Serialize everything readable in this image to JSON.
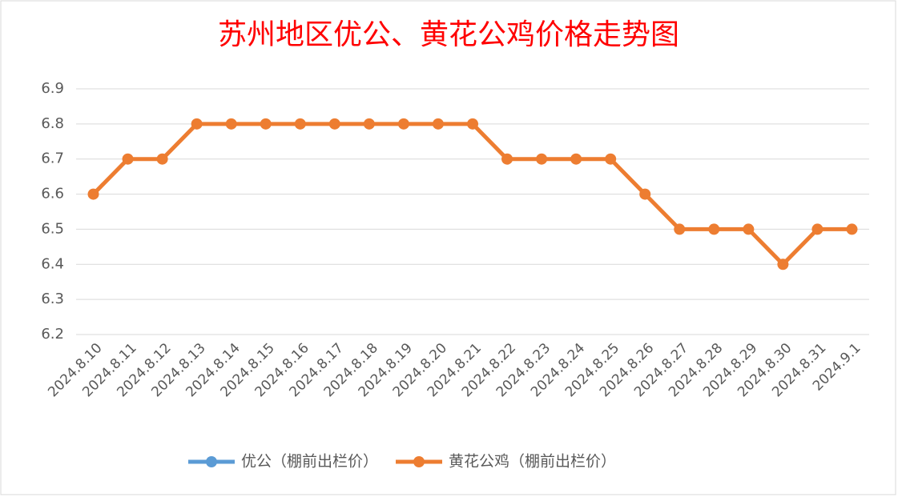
{
  "chart_data": {
    "type": "line",
    "title": "苏州地区优公、黄花公鸡价格走势图",
    "categories": [
      "2024.8.10",
      "2024.8.11",
      "2024.8.12",
      "2024.8.13",
      "2024.8.14",
      "2024.8.15",
      "2024.8.16",
      "2024.8.17",
      "2024.8.18",
      "2024.8.19",
      "2024.8.20",
      "2024.8.21",
      "2024.8.22",
      "2024.8.23",
      "2024.8.24",
      "2024.8.25",
      "2024.8.26",
      "2024.8.27",
      "2024.8.28",
      "2024.8.29",
      "2024.8.30",
      "2024.8.31",
      "2024.9.1"
    ],
    "series": [
      {
        "name": "优公（棚前出栏价）",
        "color": "#5b9bd5",
        "values": [
          null,
          null,
          null,
          null,
          null,
          null,
          null,
          null,
          null,
          null,
          null,
          null,
          null,
          null,
          null,
          null,
          null,
          null,
          null,
          null,
          null,
          null,
          null
        ]
      },
      {
        "name": "黄花公鸡（棚前出栏价）",
        "color": "#ed7d31",
        "values": [
          6.6,
          6.7,
          6.7,
          6.8,
          6.8,
          6.8,
          6.8,
          6.8,
          6.8,
          6.8,
          6.8,
          6.8,
          6.7,
          6.7,
          6.7,
          6.7,
          6.6,
          6.5,
          6.5,
          6.5,
          6.4,
          6.5,
          6.5
        ]
      }
    ],
    "ylim": [
      6.2,
      6.9
    ],
    "yticks": [
      6.2,
      6.3,
      6.4,
      6.5,
      6.6,
      6.7,
      6.8,
      6.9
    ],
    "grid": true,
    "legend": "bottom"
  }
}
